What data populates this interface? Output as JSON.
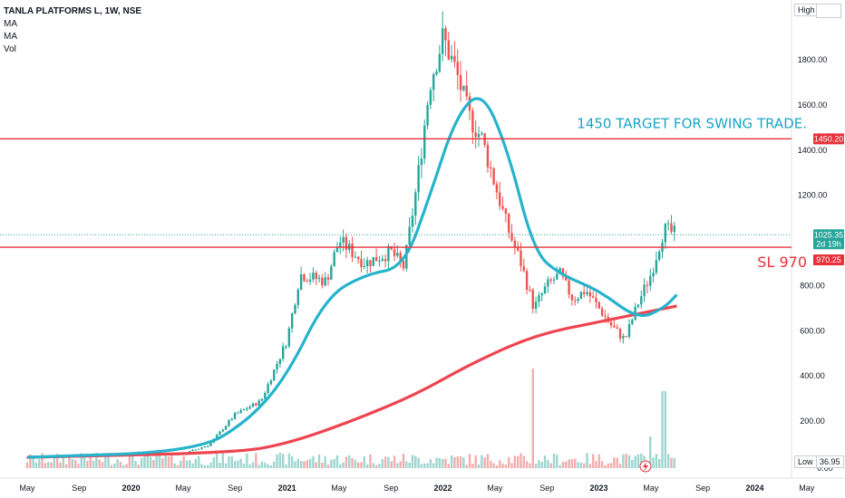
{
  "header": {
    "symbol": "TANLA PLATFORMS L, 1W, NSE",
    "indicators": [
      "MA",
      "MA",
      "Vol"
    ]
  },
  "price_scale": {
    "high_label": "High",
    "low_label": "Low",
    "low_value": "36.95",
    "ticks": [
      "200.00",
      "400.00",
      "600.00",
      "800.00",
      "1200.00",
      "1400.00",
      "1600.00",
      "1800.00"
    ],
    "zero_label": "0.00"
  },
  "tags": {
    "target": "1450.20",
    "last": "1025.35",
    "countdown": "2d 19h",
    "stop": "970.25"
  },
  "annotations": {
    "target": "1450  TARGET FOR SWING TRADE.",
    "stop": "SL 970"
  },
  "time_axis": [
    {
      "label": "May",
      "bold": false
    },
    {
      "label": "Sep",
      "bold": false
    },
    {
      "label": "2020",
      "bold": true
    },
    {
      "label": "May",
      "bold": false
    },
    {
      "label": "Sep",
      "bold": false
    },
    {
      "label": "2021",
      "bold": true
    },
    {
      "label": "May",
      "bold": false
    },
    {
      "label": "Sep",
      "bold": false
    },
    {
      "label": "2022",
      "bold": true
    },
    {
      "label": "May",
      "bold": false
    },
    {
      "label": "Sep",
      "bold": false
    },
    {
      "label": "2023",
      "bold": true
    },
    {
      "label": "May",
      "bold": false
    },
    {
      "label": "Sep",
      "bold": false
    },
    {
      "label": "2024",
      "bold": true
    },
    {
      "label": "May",
      "bold": false
    }
  ],
  "colors": {
    "up": "#26a69a",
    "down": "#ef5350",
    "ma_fast": "#26b3cc",
    "ma_slow": "#ee4450",
    "level_line": "#e8313a",
    "target_text": "#1aa5c7",
    "current_line": "#26a69a"
  },
  "chart_data": {
    "type": "candlestick",
    "title": "TANLA PLATFORMS L, 1W, NSE",
    "ylim": [
      0,
      2050
    ],
    "horizontal_levels": [
      {
        "value": 1450.2,
        "label": "1450  TARGET FOR SWING TRADE."
      },
      {
        "value": 970.25,
        "label": "SL 970"
      }
    ],
    "current_price": 1025.35,
    "key_points": [
      {
        "date": "2019-05",
        "close": 40
      },
      {
        "date": "2019-09",
        "close": 45
      },
      {
        "date": "2020-01",
        "close": 60
      },
      {
        "date": "2020-05",
        "close": 55
      },
      {
        "date": "2020-07",
        "close": 95
      },
      {
        "date": "2020-09",
        "close": 230
      },
      {
        "date": "2020-11",
        "close": 290
      },
      {
        "date": "2021-01",
        "close": 560
      },
      {
        "date": "2021-02",
        "close": 850
      },
      {
        "date": "2021-04",
        "close": 820
      },
      {
        "date": "2021-05",
        "close": 1000
      },
      {
        "date": "2021-07",
        "close": 900
      },
      {
        "date": "2021-09",
        "close": 950
      },
      {
        "date": "2021-10",
        "close": 880
      },
      {
        "date": "2021-11",
        "close": 1250
      },
      {
        "date": "2021-12",
        "close": 1700
      },
      {
        "date": "2022-01",
        "close": 1900
      },
      {
        "date": "2022-02",
        "close": 1750
      },
      {
        "date": "2022-03",
        "close": 1550
      },
      {
        "date": "2022-04",
        "close": 1450
      },
      {
        "date": "2022-05",
        "close": 1250
      },
      {
        "date": "2022-06",
        "close": 1050
      },
      {
        "date": "2022-07",
        "close": 900
      },
      {
        "date": "2022-08",
        "close": 700
      },
      {
        "date": "2022-09",
        "close": 800
      },
      {
        "date": "2022-10",
        "close": 850
      },
      {
        "date": "2022-11",
        "close": 740
      },
      {
        "date": "2022-12",
        "close": 780
      },
      {
        "date": "2023-01",
        "close": 700
      },
      {
        "date": "2023-02",
        "close": 620
      },
      {
        "date": "2023-03",
        "close": 560
      },
      {
        "date": "2023-04",
        "close": 720
      },
      {
        "date": "2023-05",
        "close": 850
      },
      {
        "date": "2023-06",
        "close": 1050
      },
      {
        "date": "2023-07",
        "close": 1025
      }
    ],
    "ma_fast": [
      {
        "date": "2019-05",
        "value": 40
      },
      {
        "date": "2020-06",
        "value": 65
      },
      {
        "date": "2020-10",
        "value": 200
      },
      {
        "date": "2021-01",
        "value": 400
      },
      {
        "date": "2021-04",
        "value": 750
      },
      {
        "date": "2021-07",
        "value": 850
      },
      {
        "date": "2021-10",
        "value": 880
      },
      {
        "date": "2021-12",
        "value": 1200
      },
      {
        "date": "2022-02",
        "value": 1550
      },
      {
        "date": "2022-04",
        "value": 1670
      },
      {
        "date": "2022-06",
        "value": 1400
      },
      {
        "date": "2022-08",
        "value": 950
      },
      {
        "date": "2022-10",
        "value": 850
      },
      {
        "date": "2023-01",
        "value": 780
      },
      {
        "date": "2023-04",
        "value": 650
      },
      {
        "date": "2023-06",
        "value": 700
      },
      {
        "date": "2023-07",
        "value": 760
      }
    ],
    "ma_slow": [
      {
        "date": "2019-05",
        "value": 40
      },
      {
        "date": "2020-09",
        "value": 60
      },
      {
        "date": "2021-01",
        "value": 100
      },
      {
        "date": "2021-06",
        "value": 200
      },
      {
        "date": "2021-11",
        "value": 320
      },
      {
        "date": "2022-03",
        "value": 450
      },
      {
        "date": "2022-08",
        "value": 580
      },
      {
        "date": "2023-01",
        "value": 640
      },
      {
        "date": "2023-07",
        "value": 710
      }
    ]
  }
}
